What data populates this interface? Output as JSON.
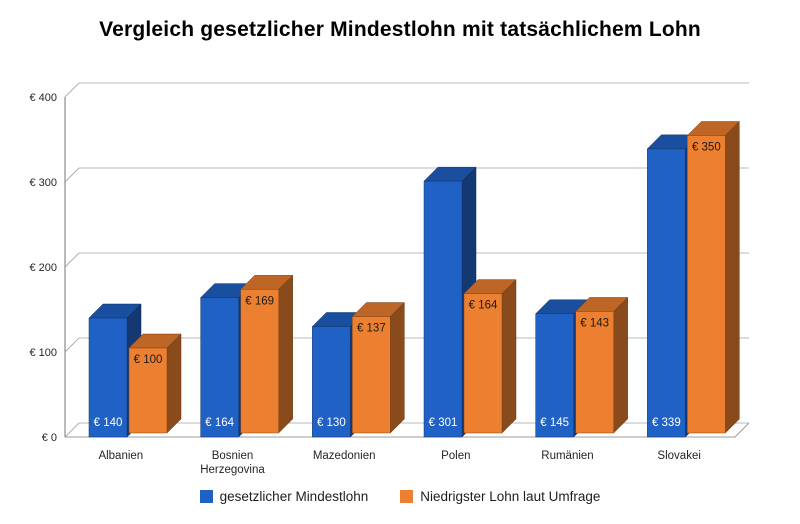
{
  "title": "Vergleich gesetzlicher Mindestlohn mit tatsächlichem Lohn",
  "chart_data": {
    "type": "bar",
    "effect": "3d-clustered-column",
    "title": "Vergleich gesetzlicher Mindestlohn mit tatsächlichem Lohn",
    "categories": [
      "Albanien",
      "Bosnien Herzegovina",
      "Mazedonien",
      "Polen",
      "Rumänien",
      "Slovakei"
    ],
    "series": [
      {
        "name": "gesetzlicher Mindestlohn",
        "color": "#2061C5",
        "label_color": "#ffffff",
        "values": [
          140,
          164,
          130,
          301,
          145,
          339
        ]
      },
      {
        "name": "Niedrigster Lohn laut Umfrage",
        "color": "#EC8030",
        "label_color": "#1a1a1a",
        "values": [
          100,
          169,
          137,
          164,
          143,
          350
        ]
      }
    ],
    "y_ticks": [
      0,
      100,
      200,
      300,
      400
    ],
    "y_tick_prefix": "€ ",
    "value_prefix": "€ ",
    "ylim": [
      0,
      400
    ],
    "grid": true,
    "legend_position": "bottom",
    "xlabel": "",
    "ylabel": ""
  }
}
